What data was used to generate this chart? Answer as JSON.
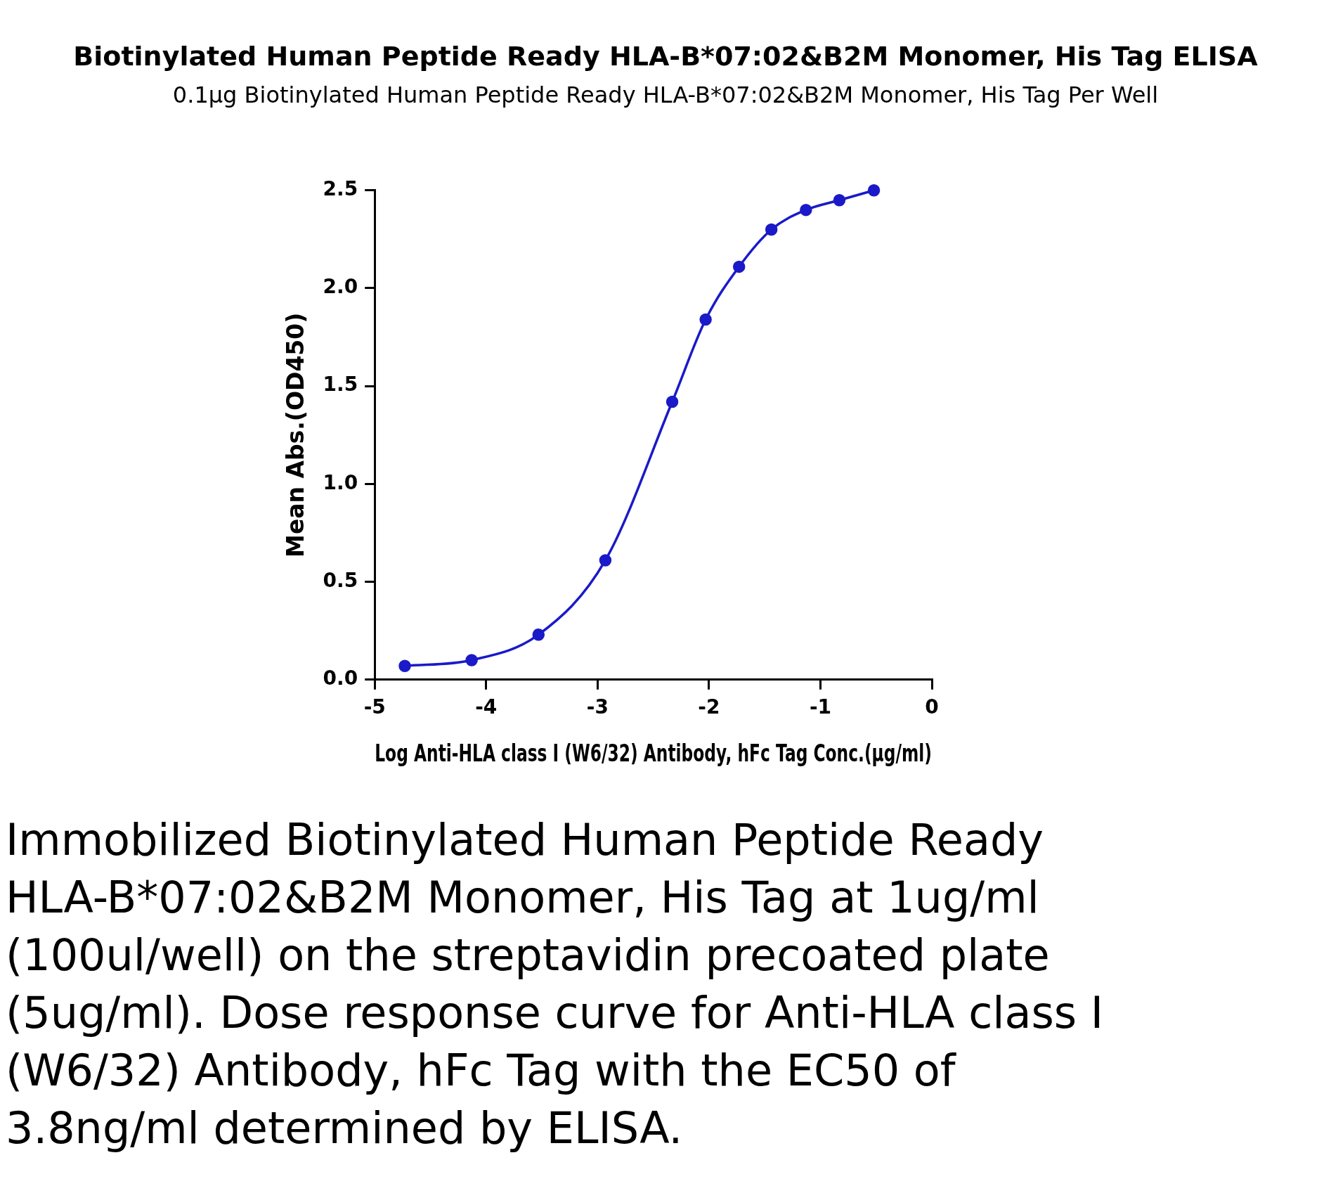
{
  "chart_data": {
    "type": "line",
    "title": "Biotinylated Human Peptide Ready  HLA-B*07:02&B2M Monomer, His Tag ELISA",
    "subtitle": "0.1μg Biotinylated Human Peptide Ready  HLA-B*07:02&B2M Monomer, His Tag Per Well",
    "xlabel": "Log Anti-HLA class I (W6/32) Antibody, hFc Tag Conc.(μg/ml)",
    "ylabel": "Mean Abs.(OD450)",
    "x": [
      -4.73,
      -4.13,
      -3.53,
      -2.93,
      -2.33,
      -2.03,
      -1.73,
      -1.44,
      -1.13,
      -0.83,
      -0.52
    ],
    "series": [
      {
        "color": "#1a1ac8",
        "values": [
          0.07,
          0.1,
          0.23,
          0.61,
          1.42,
          1.84,
          2.11,
          2.3,
          2.4,
          2.45,
          2.5
        ]
      }
    ],
    "xlim": [
      -5,
      0
    ],
    "xticks": [
      -5,
      -4,
      -3,
      -2,
      -1,
      0
    ],
    "ylim": [
      0,
      2.5
    ],
    "yticks": [
      {
        "value": 0,
        "label": "0.0"
      },
      {
        "value": 0.5,
        "label": "0.5"
      },
      {
        "value": 1,
        "label": "1.0"
      },
      {
        "value": 1.5,
        "label": "1.5"
      },
      {
        "value": 2,
        "label": "2.0"
      },
      {
        "value": 2.5,
        "label": "2.5"
      }
    ],
    "grid": false,
    "legend": false,
    "marker": "circle",
    "line_style": "solid",
    "annotations": [
      "Immobilized Biotinylated Human Peptide Ready HLA-B*07:02&B2M Monomer, His Tag at 1ug/ml (100ul/well) on the streptavidin precoated plate (5ug/ml). Dose response curve for Anti-HLA class I (W6/32) Antibody, hFc Tag with the EC50 of 3.8ng/ml determined by ELISA."
    ]
  }
}
